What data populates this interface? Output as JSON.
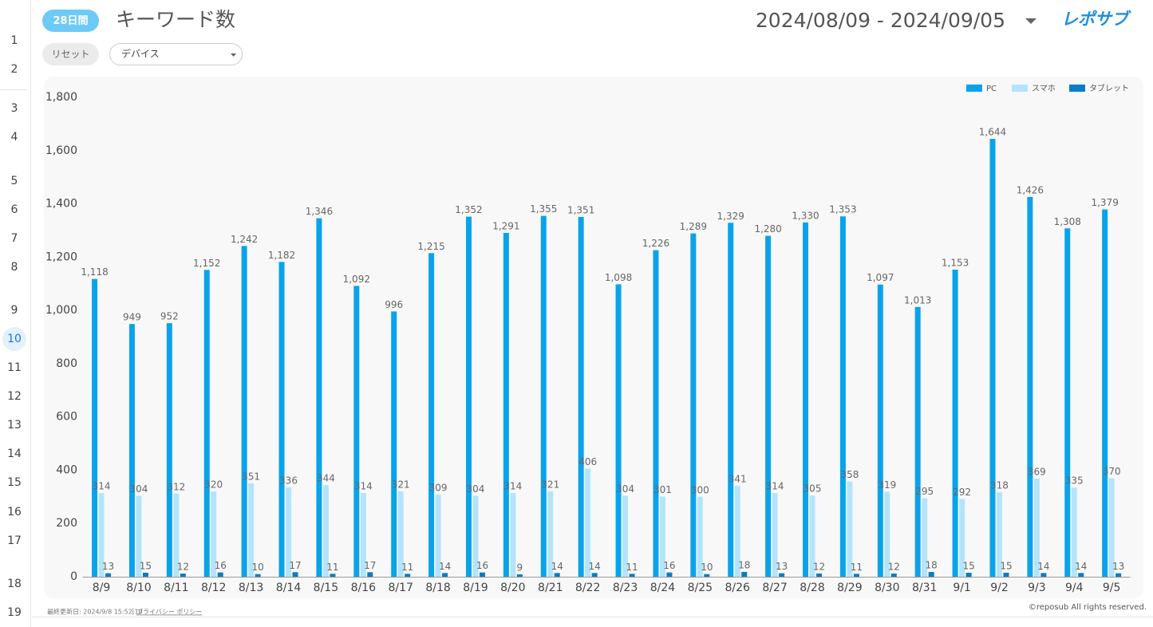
{
  "header": {
    "badge": "28日間",
    "title": "キーワード数",
    "date_range": "2024/08/09 - 2024/09/05",
    "logo": "レポサブ"
  },
  "controls": {
    "reset": "リセット",
    "device": "デバイス"
  },
  "row_numbers": [
    "1",
    "2",
    "3",
    "4",
    "5",
    "6",
    "7",
    "8",
    "9",
    "10",
    "11",
    "12",
    "13",
    "14",
    "15",
    "16",
    "17",
    "18",
    "19"
  ],
  "footer": {
    "last_updated": "最終更新日: 2024/9/8 15:52:10",
    "privacy": "プライバシー ポリシー",
    "copyright": "©reposub All rights reserved."
  },
  "chart_data": {
    "type": "bar",
    "categories": [
      "8/9",
      "8/10",
      "8/11",
      "8/12",
      "8/13",
      "8/14",
      "8/15",
      "8/16",
      "8/17",
      "8/18",
      "8/19",
      "8/20",
      "8/21",
      "8/22",
      "8/23",
      "8/24",
      "8/25",
      "8/26",
      "8/27",
      "8/28",
      "8/29",
      "8/30",
      "8/31",
      "9/1",
      "9/2",
      "9/3",
      "9/4",
      "9/5"
    ],
    "series": [
      {
        "name": "PC",
        "color": "#0aa3ea",
        "values": [
          1118,
          949,
          952,
          1152,
          1242,
          1182,
          1346,
          1092,
          996,
          1215,
          1352,
          1291,
          1355,
          1351,
          1098,
          1226,
          1289,
          1329,
          1280,
          1330,
          1353,
          1097,
          1013,
          1153,
          1644,
          1426,
          1308,
          1379
        ],
        "value_labels": [
          "1,118",
          "949",
          "952",
          "1,152",
          "1,242",
          "1,182",
          "1,346",
          "1,092",
          "996",
          "1,215",
          "1,352",
          "1,291",
          "1,355",
          "1,351",
          "1,098",
          "1,226",
          "1,289",
          "1,329",
          "1,280",
          "1,330",
          "1,353",
          "1,097",
          "1,013",
          "1,153",
          "1,644",
          "1,426",
          "1,308",
          "1,379"
        ]
      },
      {
        "name": "スマホ",
        "color": "#b4e4f9",
        "values": [
          314,
          304,
          312,
          320,
          351,
          336,
          344,
          314,
          321,
          309,
          304,
          314,
          321,
          406,
          304,
          301,
          300,
          341,
          314,
          305,
          358,
          319,
          295,
          292,
          318,
          369,
          335,
          370
        ]
      },
      {
        "name": "タブレット",
        "color": "#0b7cc6",
        "values": [
          13,
          15,
          12,
          16,
          10,
          17,
          11,
          17,
          11,
          14,
          16,
          9,
          14,
          14,
          11,
          16,
          10,
          18,
          13,
          12,
          11,
          12,
          18,
          15,
          15,
          14,
          14,
          13
        ]
      }
    ],
    "ylim": [
      0,
      1800
    ],
    "yticks": [
      0,
      200,
      400,
      600,
      800,
      {
        "value": 1000,
        "label": "1,000"
      },
      {
        "value": 1200,
        "label": "1,200"
      },
      {
        "value": 1400,
        "label": "1,400"
      },
      {
        "value": 1600,
        "label": "1,600"
      },
      {
        "value": 1800,
        "label": "1,800"
      }
    ],
    "grid": false,
    "legend": "top-right"
  }
}
